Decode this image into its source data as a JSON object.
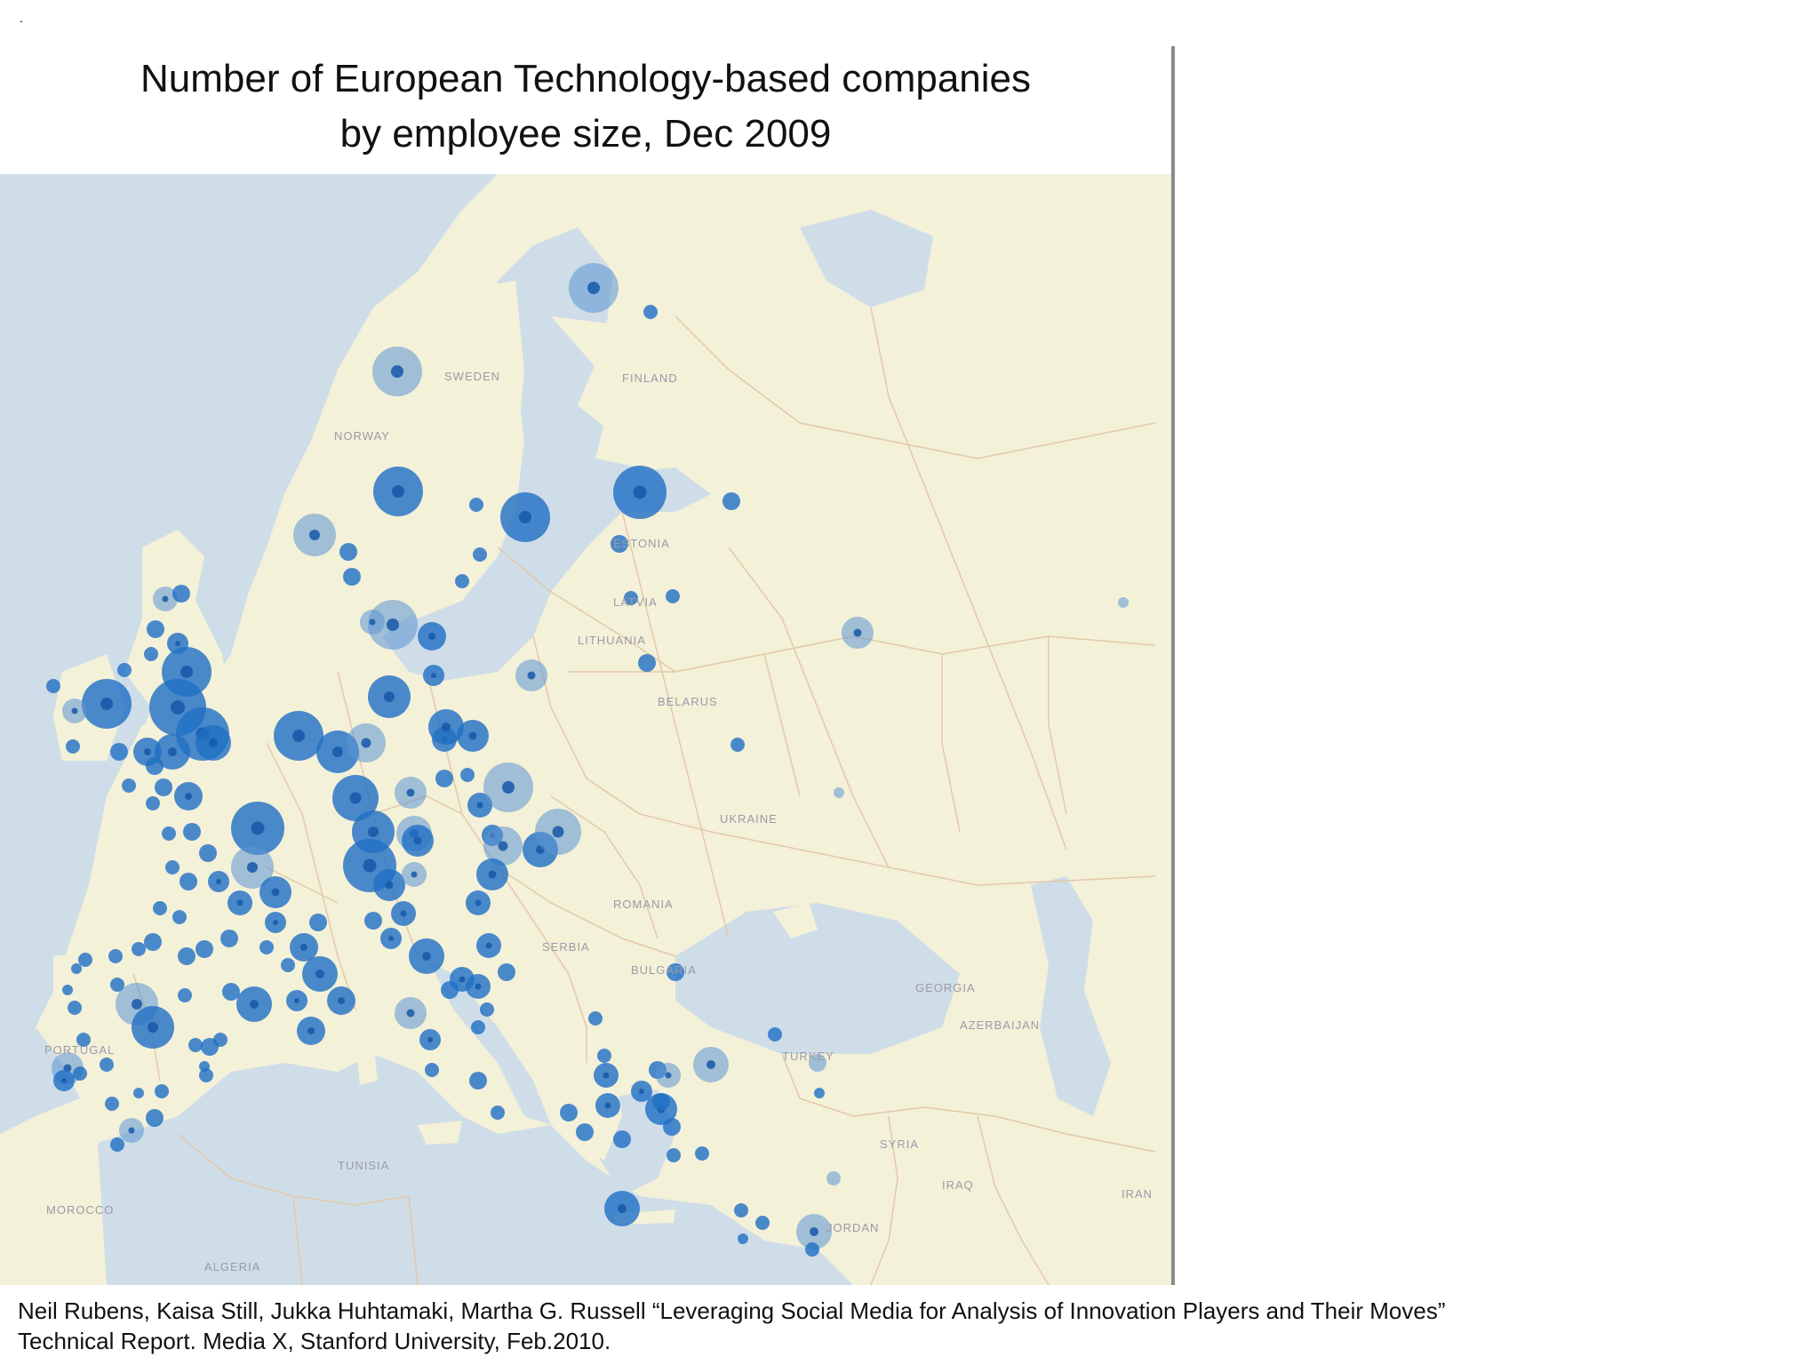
{
  "header": {
    "corner_mark": ".",
    "title_line1": "Number of European Technology-based companies",
    "title_line2": "by employee size,  Dec 2009"
  },
  "map": {
    "colors": {
      "land": "#f4f1d9",
      "sea": "#cfdde8",
      "border": "#e3c9a8",
      "bubble": "#1f6fc4",
      "bubble_light": "#5b93d2"
    },
    "labels": [
      {
        "name": "label-sweden",
        "text": "SWEDEN"
      },
      {
        "name": "label-finland",
        "text": "FINLAND"
      },
      {
        "name": "label-norway",
        "text": "NORWAY"
      },
      {
        "name": "label-estonia",
        "text": "ESTONIA"
      },
      {
        "name": "label-latvia",
        "text": "LATVIA"
      },
      {
        "name": "label-lithuania",
        "text": "LITHUANIA"
      },
      {
        "name": "label-belarus",
        "text": "BELARUS"
      },
      {
        "name": "label-ukraine",
        "text": "UKRAINE"
      },
      {
        "name": "label-romania",
        "text": "ROMANIA"
      },
      {
        "name": "label-serbia",
        "text": "SERBIA"
      },
      {
        "name": "label-bulgaria",
        "text": "BULGARIA"
      },
      {
        "name": "label-georgia",
        "text": "GEORGIA"
      },
      {
        "name": "label-azerbaijan",
        "text": "AZERBAIJAN"
      },
      {
        "name": "label-turkey",
        "text": "TURKEY"
      },
      {
        "name": "label-portugal",
        "text": "PORTUGAL"
      },
      {
        "name": "label-tunisia",
        "text": "TUNISIA"
      },
      {
        "name": "label-morocco",
        "text": "MOROCCO"
      },
      {
        "name": "label-algeria",
        "text": "ALGERIA"
      },
      {
        "name": "label-syria",
        "text": "SYRIA"
      },
      {
        "name": "label-iraq",
        "text": "IRAQ"
      },
      {
        "name": "label-iran",
        "text": "IRAN"
      },
      {
        "name": "label-jordan",
        "text": "JORDAN"
      }
    ]
  },
  "citation": {
    "line1": "Neil Rubens, Kaisa Still, Jukka Huhtamaki, Martha G. Russell “Leveraging Social Media for Analysis of Innovation Players and Their Moves”",
    "line2": "Technical Report.  Media X, Stanford University, Feb.2010."
  }
}
